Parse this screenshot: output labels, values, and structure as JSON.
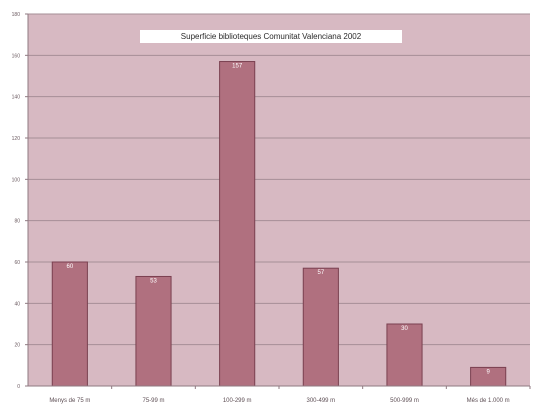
{
  "chart_data": {
    "type": "bar",
    "title": "Superficie biblioteques Comunitat Valenciana 2002",
    "xlabel": "",
    "ylabel": "",
    "ylim": [
      0,
      180
    ],
    "yticks": [
      0,
      20,
      40,
      60,
      80,
      100,
      120,
      140,
      160,
      180
    ],
    "categories": [
      "Menys de 75 m",
      "75-99 m",
      "100-299 m",
      "300-499 m",
      "500-999 m",
      "Més de 1.000 m"
    ],
    "values": [
      60,
      53,
      157,
      57,
      30,
      9
    ],
    "grid": true,
    "legend": "none"
  },
  "colors": {
    "plot_background": "#d7b9c2",
    "bar_fill": "#b0707f",
    "bar_stroke": "#7a4050",
    "grid": "#a68e96",
    "axis": "#8f7a82",
    "title_box": "#ffffff"
  }
}
